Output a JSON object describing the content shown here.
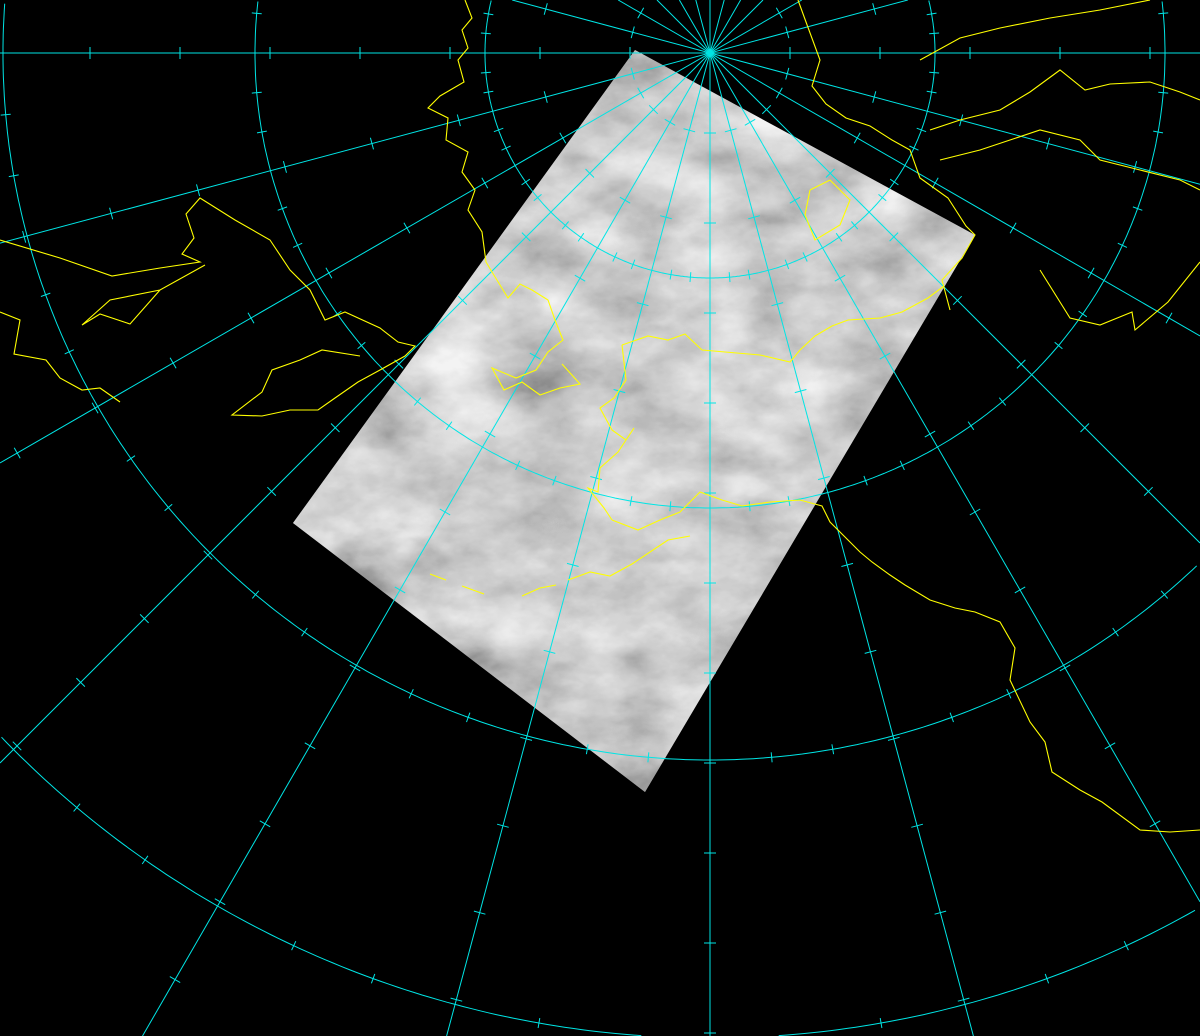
{
  "map": {
    "background": "#000000",
    "graticule_color": "#00e5e5",
    "coastline_color": "#ffff00",
    "imagery_tone_light": "#c8c8c8",
    "imagery_tone_dark": "#6e6e6e"
  }
}
